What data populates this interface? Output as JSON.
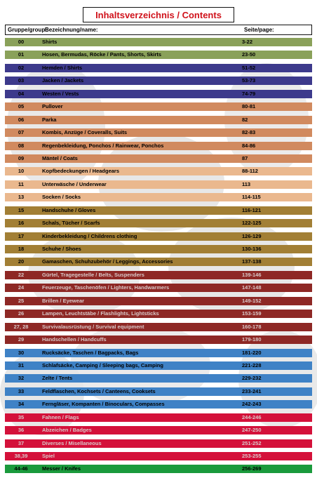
{
  "title": "Inhaltsverzeichnis / Contents",
  "header": {
    "group": "Gruppe/group:",
    "name": "Bezeichnung/name:",
    "page": "Seite/page:"
  },
  "rows": [
    {
      "num": "00",
      "name": "Shirts",
      "page": "3-22",
      "color": "#8aa15a",
      "text": "dark"
    },
    {
      "num": "01",
      "name": "Hosen, Bermudas, Röcke / Pants, Shorts, Skirts",
      "page": "23-50",
      "color": "#8aa15a",
      "text": "dark"
    },
    {
      "num": "02",
      "name": "Hemden / Shirts",
      "page": "51-52",
      "color": "#3d3a8c",
      "text": "dark"
    },
    {
      "num": "03",
      "name": "Jacken / Jackets",
      "page": "53-73",
      "color": "#3d3a8c",
      "text": "dark"
    },
    {
      "num": "04",
      "name": "Westen / Vests",
      "page": "74-79",
      "color": "#3d3a8c",
      "text": "dark"
    },
    {
      "num": "05",
      "name": "Pullover",
      "page": "80-81",
      "color": "#d18a5f",
      "text": "dark"
    },
    {
      "num": "06",
      "name": "Parka",
      "page": "82",
      "color": "#d18a5f",
      "text": "dark"
    },
    {
      "num": "07",
      "name": "Kombis, Anzüge / Coveralls, Suits",
      "page": "82-83",
      "color": "#d18a5f",
      "text": "dark"
    },
    {
      "num": "08",
      "name": "Regenbekleidung, Ponchos / Rainwear, Ponchos",
      "page": "84-86",
      "color": "#d18a5f",
      "text": "dark"
    },
    {
      "num": "09",
      "name": "Mäntel / Coats",
      "page": "87",
      "color": "#d18a5f",
      "text": "dark"
    },
    {
      "num": "10",
      "name": "Kopfbedeckungen / Headgears",
      "page": "88-112",
      "color": "#eab88e",
      "text": "dark"
    },
    {
      "num": "11",
      "name": "Unterwäsche / Underwear",
      "page": "113",
      "color": "#eab88e",
      "text": "dark"
    },
    {
      "num": "13",
      "name": "Socken / Socks",
      "page": "114-115",
      "color": "#eab88e",
      "text": "dark"
    },
    {
      "num": "15",
      "name": "Handschuhe / Gloves",
      "page": "116-121",
      "color": "#a27f35",
      "text": "dark"
    },
    {
      "num": "16",
      "name": "Schals, Tücher / Scarfs",
      "page": "122-125",
      "color": "#a27f35",
      "text": "dark"
    },
    {
      "num": "17",
      "name": "Kinderbekleidung / Childrens clothing",
      "page": "126-129",
      "color": "#a27f35",
      "text": "dark"
    },
    {
      "num": "18",
      "name": "Schuhe / Shoes",
      "page": "130-136",
      "color": "#a27f35",
      "text": "dark"
    },
    {
      "num": "20",
      "name": "Gamaschen, Schuhzubehör / Leggings, Accessories",
      "page": "137-138",
      "color": "#a27f35",
      "text": "dark"
    },
    {
      "num": "22",
      "name": "Gürtel, Tragegestelle / Belts, Suspenders",
      "page": "139-146",
      "color": "#8e2825",
      "text": "dim"
    },
    {
      "num": "24",
      "name": "Feuerzeuge, Taschenöfen / Lighters, Handwarmers",
      "page": "147-148",
      "color": "#8e2825",
      "text": "dim"
    },
    {
      "num": "25",
      "name": "Brillen / Eyewear",
      "page": "149-152",
      "color": "#8e2825",
      "text": "dim"
    },
    {
      "num": "26",
      "name": "Lampen, Leuchtstäbe / Flashlights, Lightsticks",
      "page": "153-159",
      "color": "#8e2825",
      "text": "dim"
    },
    {
      "num": "27, 28",
      "name": "Survivalausrüstung / Survival equipment",
      "page": "160-178",
      "color": "#8e2825",
      "text": "dim"
    },
    {
      "num": "29",
      "name": "Handschellen / Handcuffs",
      "page": "179-180",
      "color": "#8e2825",
      "text": "dim"
    },
    {
      "num": "30",
      "name": "Rucksäcke, Taschen / Bagpacks, Bags",
      "page": "181-220",
      "color": "#3f82c6",
      "text": "dark"
    },
    {
      "num": "31",
      "name": "Schlafsäcke, Camping  / Sleeping bags, Camping",
      "page": "221-228",
      "color": "#3f82c6",
      "text": "dark"
    },
    {
      "num": "32",
      "name": "Zelte / Tents",
      "page": "229-232",
      "color": "#3f82c6",
      "text": "dark"
    },
    {
      "num": "33",
      "name": "Feldflaschen, Kochsets / Canteens, Cooksets",
      "page": "233-241",
      "color": "#3f82c6",
      "text": "dark"
    },
    {
      "num": "34",
      "name": "Ferngläser, Kompanten  / Binoculars, Compasses",
      "page": "242-243",
      "color": "#3f82c6",
      "text": "dark"
    },
    {
      "num": "35",
      "name": "Fahnen / Flags",
      "page": "244-246",
      "color": "#d4113a",
      "text": "dim"
    },
    {
      "num": "36",
      "name": "Abzeichen / Badges",
      "page": "247-250",
      "color": "#d4113a",
      "text": "dim"
    },
    {
      "num": "37",
      "name": "Diverses / Misellaneous",
      "page": "251-252",
      "color": "#d4113a",
      "text": "dim"
    },
    {
      "num": "38,39",
      "name": "Spiel",
      "page": "253-255",
      "color": "#d4113a",
      "text": "dim"
    },
    {
      "num": "44-46",
      "name": "Messer / Knifes",
      "page": "256-269",
      "color": "#1a9a3c",
      "text": "dark"
    }
  ]
}
